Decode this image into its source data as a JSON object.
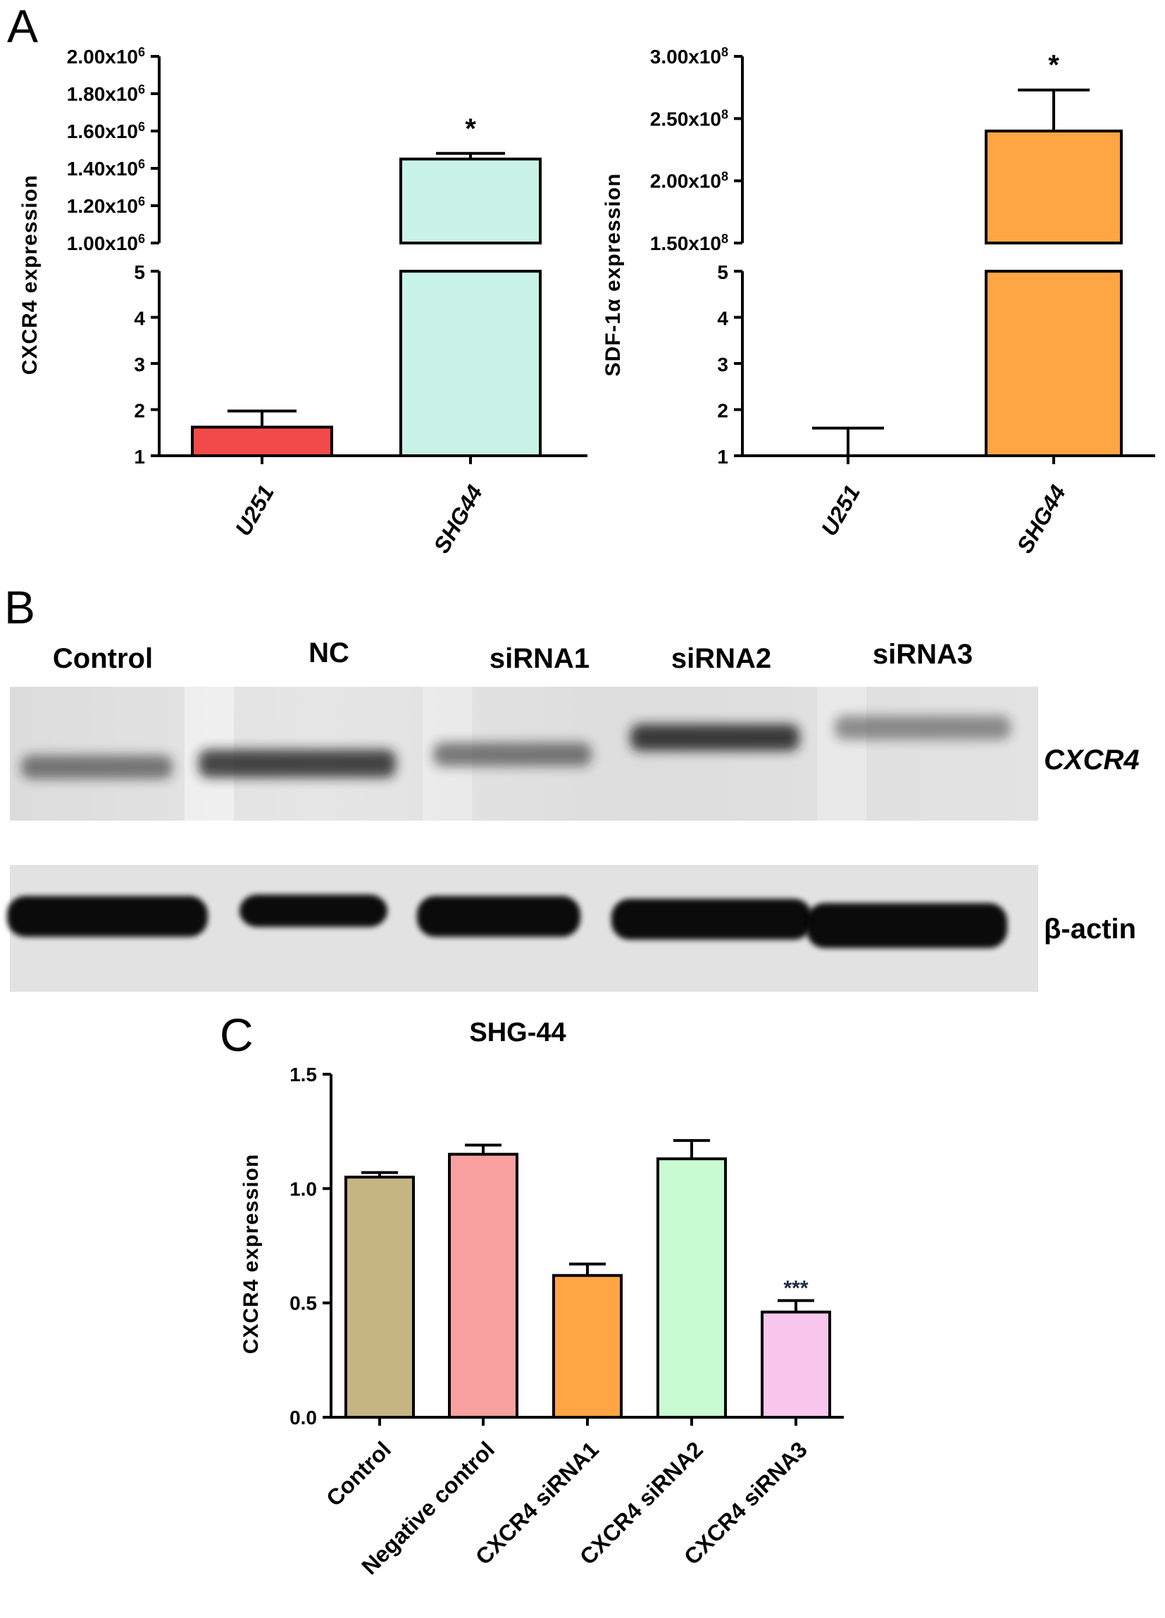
{
  "panels": {
    "a": "A",
    "b": "B",
    "c": "C"
  },
  "chart_data": [
    {
      "id": "A-left",
      "type": "bar",
      "ylabel": "CXCR4 expression",
      "categories": [
        "U251",
        "SHG44"
      ],
      "values": [
        1.62,
        1450000
      ],
      "errors": [
        0.35,
        30000
      ],
      "colors": [
        "#f24a4a",
        "#c9f3e6"
      ],
      "annotations": [
        "",
        "*"
      ],
      "axis_break": {
        "lower_range": [
          1,
          5
        ],
        "lower_ticks": [
          "1",
          "2",
          "3",
          "4",
          "5"
        ],
        "upper_range": [
          1000000,
          2000000
        ],
        "upper_ticks": [
          {
            "mant": "1.00x10",
            "exp": "6"
          },
          {
            "mant": "1.20x10",
            "exp": "6"
          },
          {
            "mant": "1.40x10",
            "exp": "6"
          },
          {
            "mant": "1.60x10",
            "exp": "6"
          },
          {
            "mant": "1.80x10",
            "exp": "6"
          },
          {
            "mant": "2.00x10",
            "exp": "6"
          }
        ]
      }
    },
    {
      "id": "A-right",
      "type": "bar",
      "ylabel": "SDF-1α expression",
      "categories": [
        "U251",
        "SHG44"
      ],
      "values": [
        1.0,
        240000000
      ],
      "errors": [
        0.6,
        33000000
      ],
      "colors": [
        "#ffffff",
        "#ffa544"
      ],
      "annotations": [
        "",
        "*"
      ],
      "axis_break": {
        "lower_range": [
          1,
          5
        ],
        "lower_ticks": [
          "1",
          "2",
          "3",
          "4",
          "5"
        ],
        "upper_range": [
          150000000,
          300000000
        ],
        "upper_ticks": [
          {
            "mant": "1.50x10",
            "exp": "8"
          },
          {
            "mant": "2.00x10",
            "exp": "8"
          },
          {
            "mant": "2.50x10",
            "exp": "8"
          },
          {
            "mant": "3.00x10",
            "exp": "8"
          }
        ]
      }
    },
    {
      "id": "C",
      "type": "bar",
      "title": "SHG-44",
      "ylabel": "CXCR4 expression",
      "ylim": [
        0,
        1.5
      ],
      "yticks": [
        "0.0",
        "0.5",
        "1.0",
        "1.5"
      ],
      "categories": [
        "Control",
        "Negative control",
        "CXCR4 siRNA1",
        "CXCR4 siRNA2",
        "CXCR4 siRNA3"
      ],
      "values": [
        1.05,
        1.15,
        0.62,
        1.13,
        0.46
      ],
      "errors": [
        0.02,
        0.04,
        0.05,
        0.08,
        0.05
      ],
      "colors": [
        "#c5b583",
        "#f9a0a0",
        "#ffa544",
        "#c9fbd3",
        "#f9c6ee"
      ],
      "annotations": [
        "",
        "",
        "",
        "",
        "***"
      ]
    }
  ],
  "western_blot": {
    "lanes": [
      "Control",
      "NC",
      "siRNA1",
      "siRNA2",
      "siRNA3"
    ],
    "proteins": [
      "CXCR4",
      "β-actin"
    ]
  }
}
